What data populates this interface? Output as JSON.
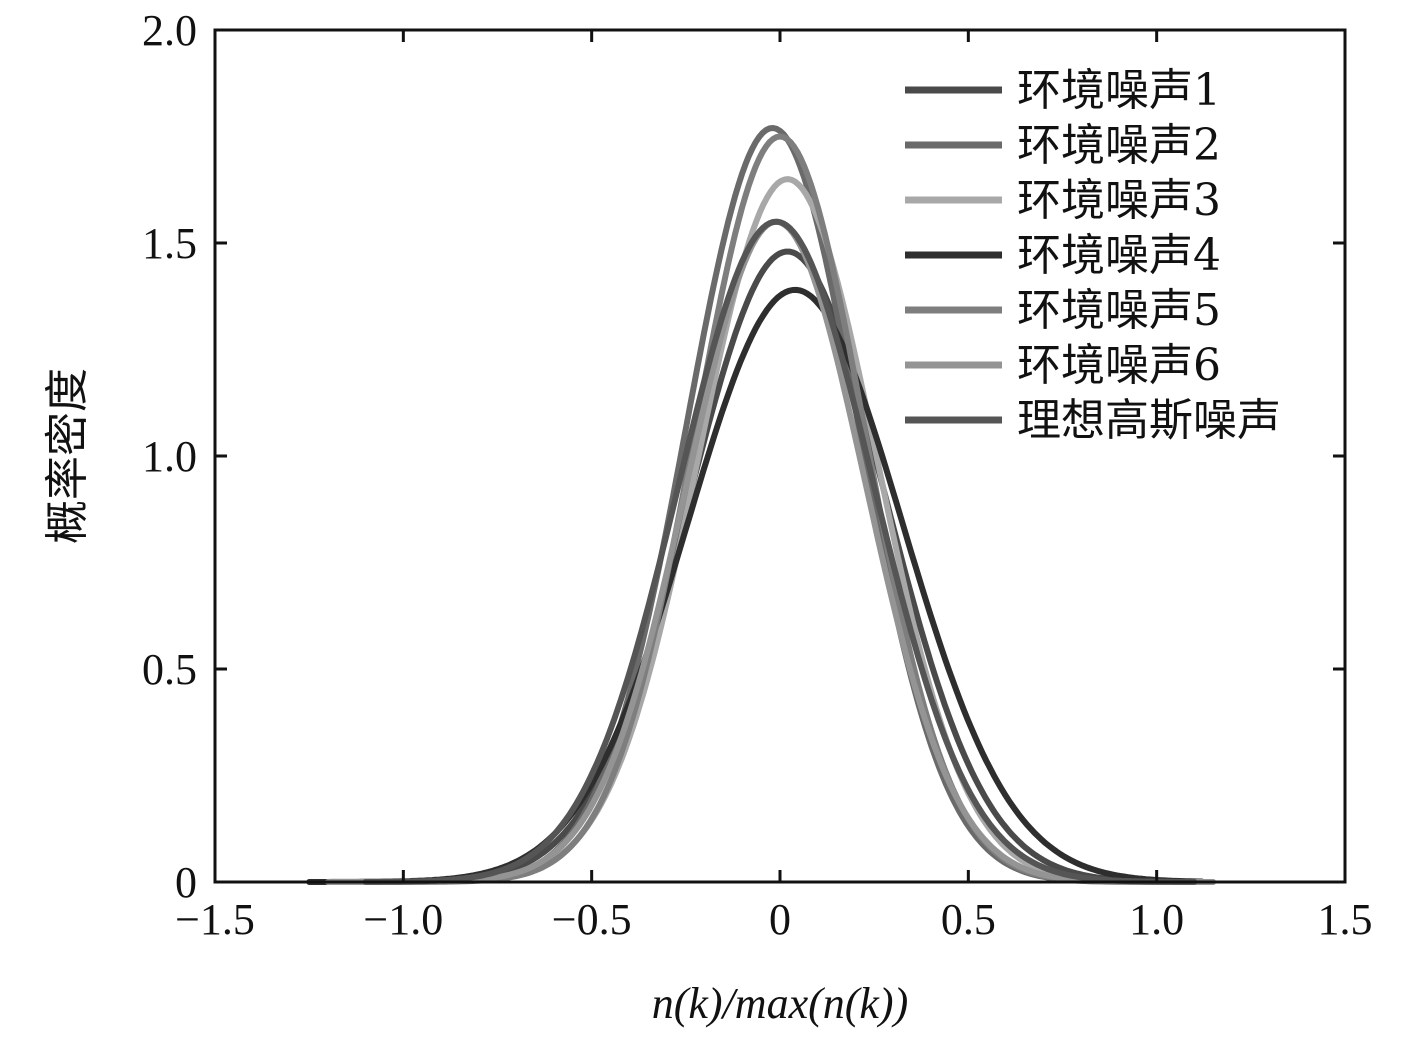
{
  "chart_data": {
    "type": "line",
    "title": "",
    "xlabel": "n(k)/max(n(k))",
    "ylabel": "概率密度",
    "xlim": [
      -1.5,
      1.5
    ],
    "ylim": [
      0,
      2.0
    ],
    "xticks": [
      -1.5,
      -1.0,
      -0.5,
      0,
      0.5,
      1.0,
      1.5
    ],
    "xtick_labels": [
      "−1.5",
      "−1.0",
      "−0.5",
      "0",
      "0.5",
      "1.0",
      "1.5"
    ],
    "yticks": [
      0,
      0.5,
      1.0,
      1.5,
      2.0
    ],
    "ytick_labels": [
      "0",
      "0.5",
      "1.0",
      "1.5",
      "2.0"
    ],
    "grid": false,
    "legend_position": "top-right",
    "series": [
      {
        "name": "环境噪声1",
        "color": "#4a4a4a",
        "sigma": 0.262,
        "mu": 0.02,
        "peak": 1.48,
        "x_range": [
          -1.05,
          1.1
        ]
      },
      {
        "name": "环境噪声2",
        "color": "#6a6a6a",
        "sigma": 0.228,
        "mu": -0.02,
        "peak": 1.77,
        "x_range": [
          -1.1,
          1.1
        ]
      },
      {
        "name": "环境噪声3",
        "color": "#a8a8a8",
        "sigma": 0.236,
        "mu": 0.02,
        "peak": 1.65,
        "x_range": [
          -1.15,
          1.1
        ]
      },
      {
        "name": "环境噪声4",
        "color": "#2e2e2e",
        "sigma": 0.285,
        "mu": 0.04,
        "peak": 1.39,
        "x_range": [
          -1.25,
          1.12
        ]
      },
      {
        "name": "环境噪声5",
        "color": "#7e7e7e",
        "sigma": 0.225,
        "mu": 0.0,
        "peak": 1.75,
        "x_range": [
          -1.1,
          1.1
        ]
      },
      {
        "name": "环境噪声6",
        "color": "#949494",
        "sigma": 0.236,
        "mu": -0.01,
        "peak": 1.55,
        "x_range": [
          -1.2,
          1.15
        ]
      },
      {
        "name": "理想高斯噪声",
        "color": "#555555",
        "sigma": 0.257,
        "mu": -0.01,
        "peak": 1.55,
        "x_range": [
          -1.1,
          1.1
        ]
      }
    ]
  }
}
